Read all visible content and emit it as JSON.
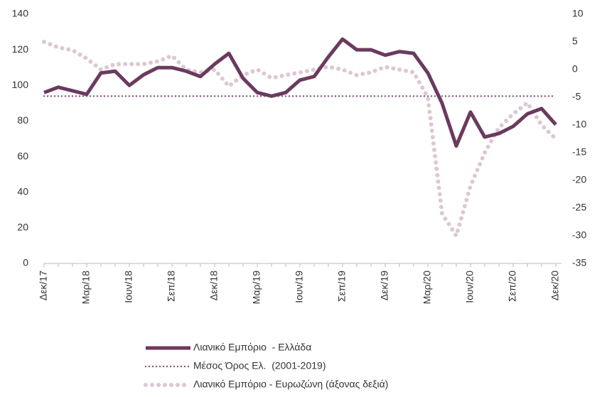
{
  "chart_data": {
    "type": "line",
    "categories": [
      "Δεκ/17",
      null,
      null,
      "Μαρ/18",
      null,
      null,
      "Ιουν/18",
      null,
      null,
      "Σεπ/18",
      null,
      null,
      "Δεκ/18",
      null,
      null,
      "Μαρ/19",
      null,
      null,
      "Ιουν/19",
      null,
      null,
      "Σεπ/19",
      null,
      null,
      "Δεκ/19",
      null,
      null,
      "Μαρ/20",
      null,
      null,
      "Ιουν/20",
      null,
      null,
      "Σεπ/20",
      null,
      null,
      "Δεκ/20"
    ],
    "series": [
      {
        "name": "Λιανικό Εμπόριο  - Ελλάδα",
        "color": "#6b3a5f",
        "style": "solid",
        "values": [
          96,
          99,
          97,
          95,
          107,
          108,
          100,
          106,
          110,
          110,
          108,
          105,
          112,
          118,
          104,
          96,
          94,
          96,
          103,
          105,
          116,
          126,
          120,
          120,
          117,
          119,
          118,
          107,
          90,
          66,
          85,
          71,
          73,
          77,
          84,
          87,
          78
        ]
      },
      {
        "name": "Μέσος Όρος Ελ.  (2001-2019)",
        "color": "#8b5f80",
        "style": "dotted",
        "values": [
          94,
          94,
          94,
          94,
          94,
          94,
          94,
          94,
          94,
          94,
          94,
          94,
          94,
          94,
          94,
          94,
          94,
          94,
          94,
          94,
          94,
          94,
          94,
          94,
          94,
          94,
          94,
          94,
          94,
          94,
          94,
          94,
          94,
          94,
          94,
          94,
          94
        ]
      },
      {
        "name": "Λιανικό Εμπόριο - Ευρωζώνη (άξονας δεξιά)",
        "color": "#dcc8d3",
        "style": "dots",
        "axis": "y2",
        "values": [
          5,
          4,
          3.5,
          2,
          0,
          1,
          1,
          1,
          1.5,
          2.5,
          0,
          -0.5,
          0,
          -3,
          -1,
          0,
          -1.5,
          -1,
          -0.5,
          0,
          0.5,
          0,
          -1,
          -0.5,
          0.5,
          0,
          -0.5,
          -5,
          -26,
          -30,
          -21,
          -15,
          -10.5,
          -8,
          -6,
          -10,
          -12.5
        ]
      }
    ],
    "ylim": [
      0,
      140
    ],
    "yticks": [
      0,
      20,
      40,
      60,
      80,
      100,
      120,
      140
    ],
    "y2lim": [
      -35,
      10
    ],
    "y2ticks": [
      -35,
      -30,
      -25,
      -20,
      -15,
      -10,
      -5,
      0,
      5,
      10
    ]
  }
}
